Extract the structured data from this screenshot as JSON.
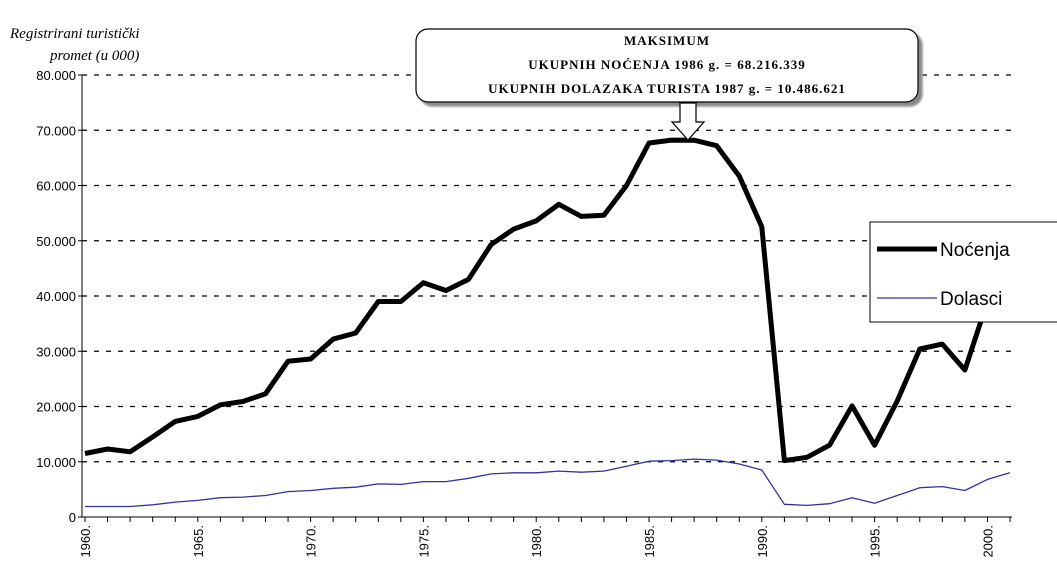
{
  "chart_data": {
    "type": "line",
    "y_axis_label": [
      "Registrirani turistički",
      "promet (u 000)"
    ],
    "annotation": [
      "MAKSIMUM",
      "UKUPNIH NOĆENJA 1986 g. = 68.216.339",
      "UKUPNIH DOLAZAKA TURISTA 1987 g. = 10.486.621"
    ],
    "categories": [
      "1960.",
      null,
      null,
      null,
      null,
      "1965.",
      null,
      null,
      null,
      null,
      "1970.",
      null,
      null,
      null,
      null,
      "1975.",
      null,
      null,
      null,
      null,
      "1980.",
      null,
      null,
      null,
      null,
      "1985.",
      null,
      null,
      null,
      null,
      "1990.",
      null,
      null,
      null,
      null,
      "1995.",
      null,
      null,
      null,
      null,
      "2000.",
      null
    ],
    "series": [
      {
        "name": "Noćenja",
        "color": "#000000",
        "values": [
          11500,
          12300,
          11800,
          14500,
          17300,
          18200,
          20300,
          20900,
          22300,
          28200,
          28600,
          32200,
          33300,
          39000,
          39000,
          42400,
          41000,
          43000,
          49300,
          52100,
          53600,
          56600,
          54400,
          54600,
          60000,
          67700,
          68216,
          68200,
          67200,
          61700,
          52500,
          10200,
          10800,
          13000,
          20100,
          13000,
          21000,
          30400,
          31300,
          26600,
          39000,
          null
        ]
      },
      {
        "name": "Dolasci",
        "color": "#33339a",
        "values": [
          1900,
          1900,
          1900,
          2200,
          2700,
          3000,
          3500,
          3600,
          3900,
          4600,
          4800,
          5200,
          5400,
          6000,
          5900,
          6400,
          6400,
          7000,
          7800,
          8000,
          8000,
          8300,
          8100,
          8300,
          9200,
          10100,
          10200,
          10487,
          10300,
          9600,
          8500,
          2300,
          2100,
          2400,
          3500,
          2500,
          3900,
          5300,
          5500,
          4800,
          6800,
          8000
        ]
      }
    ],
    "ylim": [
      0,
      80000
    ],
    "yticks": [
      0,
      {
        "value": 10000,
        "label": "10.000"
      },
      {
        "value": 20000,
        "label": "20.000"
      },
      {
        "value": 30000,
        "label": "30.000"
      },
      {
        "value": 40000,
        "label": "40.000"
      },
      {
        "value": 50000,
        "label": "50.000"
      },
      {
        "value": 60000,
        "label": "60.000"
      },
      {
        "value": 70000,
        "label": "70.000"
      },
      {
        "value": 80000,
        "label": "80.000"
      }
    ],
    "grid": true,
    "legend": "right"
  }
}
